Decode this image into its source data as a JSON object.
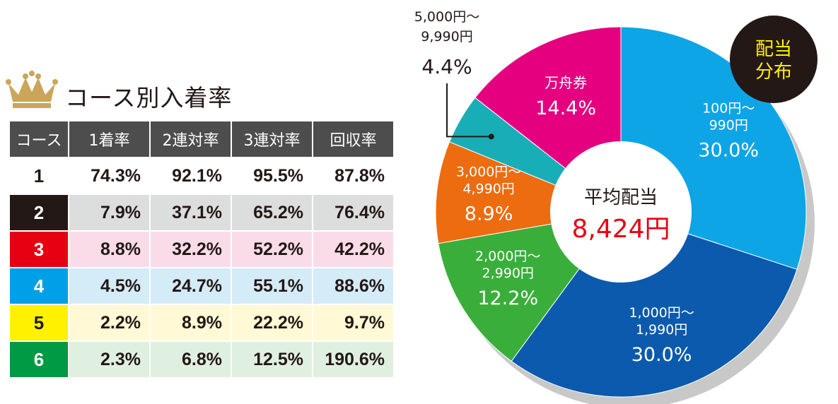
{
  "table": {
    "title": "コース別入着率",
    "headers": [
      "コース",
      "1着率",
      "2連対率",
      "3連対率",
      "回収率"
    ],
    "rows": [
      {
        "course": "1",
        "c1": "74.3%",
        "c2": "92.1%",
        "c3": "95.5%",
        "c4": "87.8%",
        "badge_bg": "#ffffff",
        "badge_fg": "#231815",
        "row_bg": "#ffffff"
      },
      {
        "course": "2",
        "c1": "7.9%",
        "c2": "37.1%",
        "c3": "65.2%",
        "c4": "76.4%",
        "badge_bg": "#231815",
        "badge_fg": "#ffffff",
        "row_bg": "#dcdddd"
      },
      {
        "course": "3",
        "c1": "8.8%",
        "c2": "32.2%",
        "c3": "52.2%",
        "c4": "42.2%",
        "badge_bg": "#e60012",
        "badge_fg": "#ffffff",
        "row_bg": "#fadce9"
      },
      {
        "course": "4",
        "c1": "4.5%",
        "c2": "24.7%",
        "c3": "55.1%",
        "c4": "88.6%",
        "badge_bg": "#00a0e9",
        "badge_fg": "#ffffff",
        "row_bg": "#d4ebf8"
      },
      {
        "course": "5",
        "c1": "2.2%",
        "c2": "8.9%",
        "c3": "22.2%",
        "c4": "9.7%",
        "badge_bg": "#fff100",
        "badge_fg": "#231815",
        "row_bg": "#fff9d6"
      },
      {
        "course": "6",
        "c1": "2.3%",
        "c2": "6.8%",
        "c3": "12.5%",
        "c4": "190.6%",
        "badge_bg": "#009944",
        "badge_fg": "#ffffff",
        "row_bg": "#e0f0e0"
      }
    ]
  },
  "chart_data": {
    "type": "pie",
    "slices": [
      {
        "line1": "100円〜",
        "line2": "990円",
        "value": 30.0,
        "pct": "30.0%",
        "color": "#0ea5e6"
      },
      {
        "line1": "1,000円〜",
        "line2": "1,990円",
        "value": 30.0,
        "pct": "30.0%",
        "color": "#0b5aad"
      },
      {
        "line1": "2,000円〜",
        "line2": "2,990円",
        "value": 12.2,
        "pct": "12.2%",
        "color": "#3aae3a"
      },
      {
        "line1": "3,000円〜",
        "line2": "4,990円",
        "value": 8.9,
        "pct": "8.9%",
        "color": "#ec6c0f"
      },
      {
        "line1": "5,000円〜",
        "line2": "9,990円",
        "value": 4.4,
        "pct": "4.4%",
        "color": "#18aeb8"
      },
      {
        "line1": "万舟券",
        "line2": "",
        "value": 14.4,
        "pct": "14.4%",
        "color": "#e4007f"
      }
    ],
    "center_label": "平均配当",
    "center_value": "8,424円",
    "badge": [
      "配当",
      "分布"
    ]
  }
}
